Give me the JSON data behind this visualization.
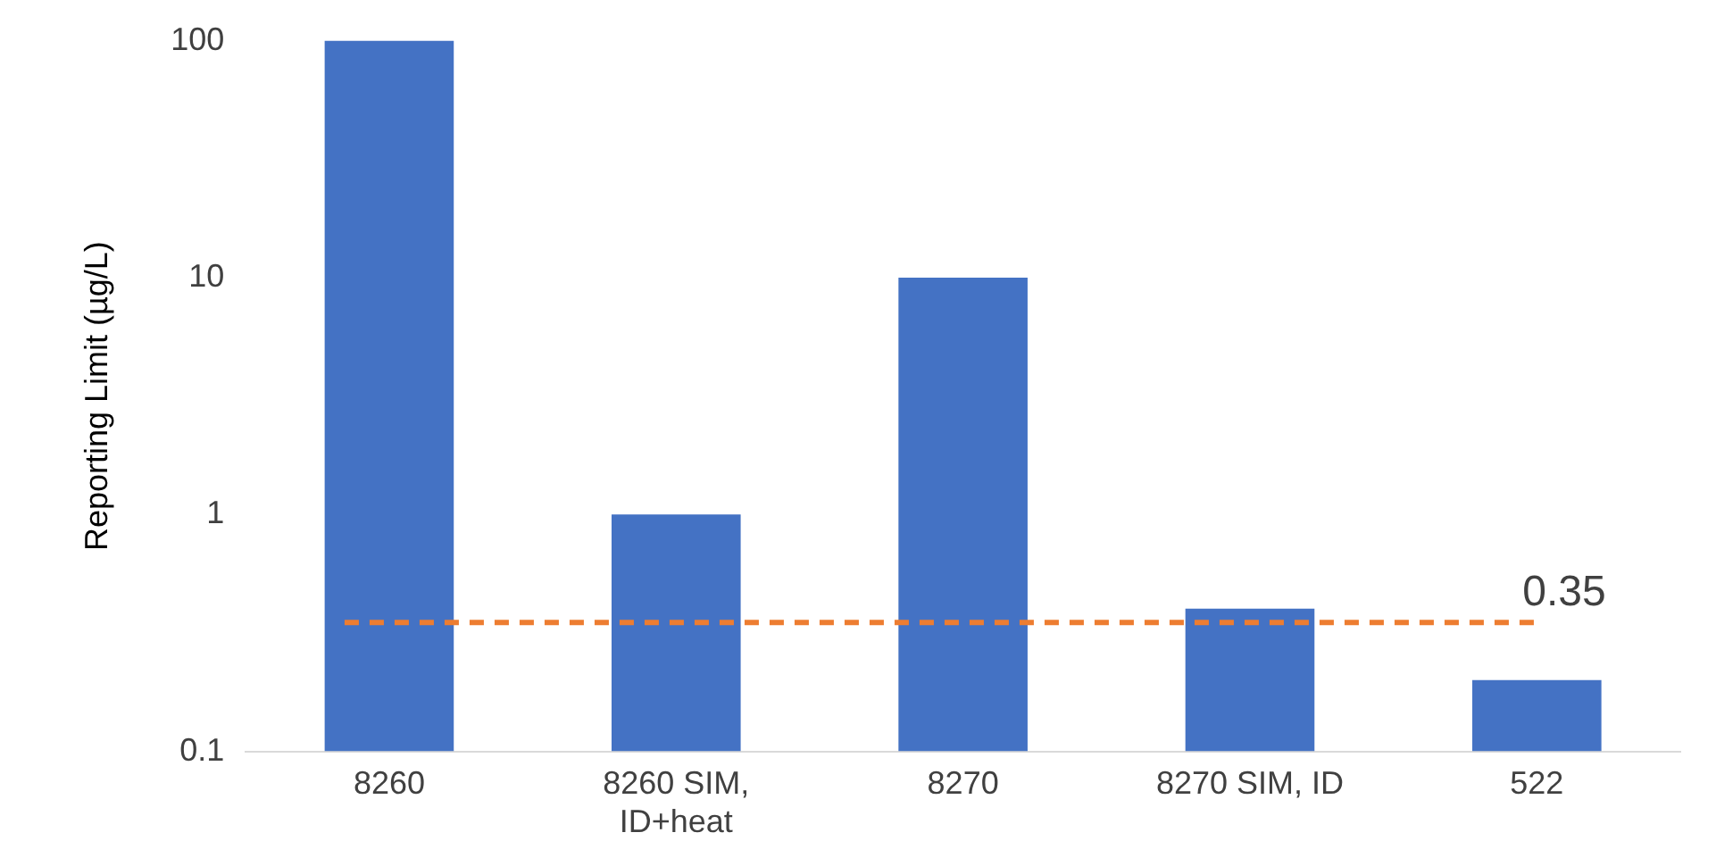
{
  "chart_data": {
    "type": "bar",
    "ylabel": "Reporting Limit (µg/L)",
    "categories": [
      "8260",
      "8260 SIM,\nID+heat",
      "8270",
      "8270 SIM, ID",
      "522"
    ],
    "values": [
      100,
      1,
      10,
      0.4,
      0.2
    ],
    "color": "#4472c4",
    "log": true,
    "ylim": [
      0.1,
      100
    ],
    "yticks": [
      0.1,
      1,
      10,
      100
    ],
    "grid": false,
    "legend": false,
    "ref_lines": [
      {
        "axis": "y",
        "value": 0.35,
        "label": "0.35",
        "color": "#ed7d31",
        "line_style": "dashed"
      }
    ]
  }
}
